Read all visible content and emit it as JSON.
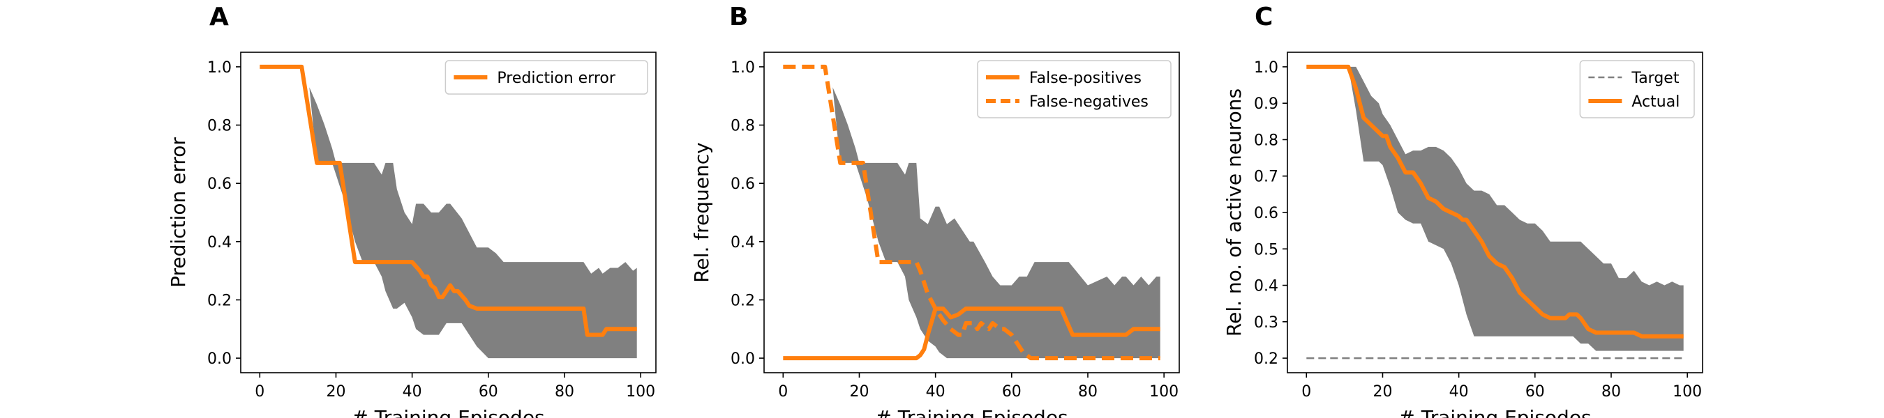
{
  "colors": {
    "orange": "#ff7f0e",
    "band": "#808080",
    "target": "#808080",
    "axis": "#000000"
  },
  "chart_data": [
    {
      "panel_label": "A",
      "type": "line",
      "xlabel": "# Training Episodes",
      "ylabel": "Prediction error",
      "xlim": [
        -5,
        104
      ],
      "ylim": [
        -0.05,
        1.05
      ],
      "xticks": [
        0,
        20,
        40,
        60,
        80,
        100
      ],
      "xtick_labels": [
        "0",
        "20",
        "40",
        "60",
        "80",
        "100"
      ],
      "yticks": [
        0.0,
        0.2,
        0.4,
        0.6,
        0.8,
        1.0
      ],
      "ytick_labels": [
        "0.0",
        "0.2",
        "0.4",
        "0.6",
        "0.8",
        "1.0"
      ],
      "legend_position": "top-right",
      "band": {
        "x": [
          0,
          11,
          13,
          15,
          17,
          19,
          20,
          22,
          25,
          27,
          30,
          32,
          33,
          35,
          36,
          38,
          40,
          41,
          43,
          45,
          47,
          49,
          50,
          53,
          55,
          57,
          60,
          62,
          64,
          66,
          70,
          75,
          80,
          85,
          87,
          89,
          90,
          92,
          94,
          96,
          98,
          99
        ],
        "upper": [
          1.0,
          1.0,
          0.93,
          0.87,
          0.8,
          0.72,
          0.67,
          0.67,
          0.67,
          0.67,
          0.67,
          0.63,
          0.67,
          0.67,
          0.58,
          0.5,
          0.46,
          0.53,
          0.53,
          0.5,
          0.5,
          0.53,
          0.53,
          0.48,
          0.43,
          0.38,
          0.38,
          0.36,
          0.33,
          0.33,
          0.33,
          0.33,
          0.33,
          0.33,
          0.29,
          0.31,
          0.29,
          0.31,
          0.31,
          0.33,
          0.3,
          0.31
        ],
        "lower": [
          1.0,
          1.0,
          0.93,
          0.67,
          0.67,
          0.67,
          0.63,
          0.55,
          0.4,
          0.33,
          0.33,
          0.28,
          0.23,
          0.17,
          0.17,
          0.19,
          0.14,
          0.1,
          0.08,
          0.08,
          0.08,
          0.12,
          0.12,
          0.12,
          0.08,
          0.04,
          0.0,
          0.0,
          0.0,
          0.0,
          0.0,
          0.0,
          0.0,
          0.0,
          0.0,
          0.0,
          0.0,
          0.0,
          0.0,
          0.0,
          0.0,
          0.0
        ]
      },
      "series": [
        {
          "name": "Prediction error",
          "style": "solid",
          "x": [
            0,
            11,
            15,
            20,
            21,
            25,
            30,
            35,
            40,
            42,
            43,
            44,
            45,
            46,
            47,
            48,
            50,
            51,
            52,
            54,
            55,
            57,
            60,
            65,
            70,
            80,
            85,
            86,
            90,
            91,
            95,
            99
          ],
          "y": [
            1.0,
            1.0,
            0.67,
            0.67,
            0.67,
            0.33,
            0.33,
            0.33,
            0.33,
            0.3,
            0.28,
            0.28,
            0.25,
            0.24,
            0.21,
            0.21,
            0.25,
            0.23,
            0.23,
            0.2,
            0.18,
            0.17,
            0.17,
            0.17,
            0.17,
            0.17,
            0.17,
            0.08,
            0.08,
            0.1,
            0.1,
            0.1
          ]
        }
      ]
    },
    {
      "panel_label": "B",
      "type": "line",
      "xlabel": "# Training Episodes",
      "ylabel": "Rel. frequency",
      "xlim": [
        -5,
        104
      ],
      "ylim": [
        -0.05,
        1.05
      ],
      "xticks": [
        0,
        20,
        40,
        60,
        80,
        100
      ],
      "xtick_labels": [
        "0",
        "20",
        "40",
        "60",
        "80",
        "100"
      ],
      "yticks": [
        0.0,
        0.2,
        0.4,
        0.6,
        0.8,
        1.0
      ],
      "ytick_labels": [
        "0.0",
        "0.2",
        "0.4",
        "0.6",
        "0.8",
        "1.0"
      ],
      "legend_position": "top-right",
      "band": {
        "x": [
          0,
          11,
          13,
          15,
          17,
          19,
          20,
          22,
          25,
          27,
          30,
          32,
          33,
          35,
          36,
          38,
          40,
          41,
          43,
          45,
          47,
          49,
          50,
          53,
          55,
          57,
          60,
          62,
          64,
          66,
          70,
          75,
          80,
          85,
          87,
          89,
          90,
          92,
          94,
          96,
          98,
          99
        ],
        "upper": [
          1.0,
          1.0,
          0.93,
          0.87,
          0.8,
          0.72,
          0.67,
          0.67,
          0.67,
          0.67,
          0.67,
          0.63,
          0.67,
          0.67,
          0.48,
          0.46,
          0.52,
          0.52,
          0.46,
          0.48,
          0.44,
          0.4,
          0.4,
          0.33,
          0.28,
          0.25,
          0.25,
          0.28,
          0.28,
          0.33,
          0.33,
          0.33,
          0.25,
          0.28,
          0.25,
          0.28,
          0.28,
          0.25,
          0.28,
          0.25,
          0.28,
          0.28
        ],
        "lower": [
          1.0,
          1.0,
          0.93,
          0.67,
          0.67,
          0.67,
          0.63,
          0.55,
          0.4,
          0.33,
          0.33,
          0.28,
          0.2,
          0.14,
          0.1,
          0.06,
          0.04,
          0.02,
          0.0,
          0.0,
          0.0,
          0.0,
          0.0,
          0.0,
          0.0,
          0.0,
          0.0,
          0.0,
          0.0,
          0.0,
          0.0,
          0.0,
          0.0,
          0.0,
          0.0,
          0.0,
          0.0,
          0.0,
          0.0,
          0.0,
          0.0,
          0.0
        ]
      },
      "series": [
        {
          "name": "False-positives",
          "style": "solid",
          "x": [
            0,
            35,
            36,
            37,
            38,
            40,
            42,
            44,
            46,
            48,
            50,
            55,
            60,
            65,
            70,
            73,
            76,
            80,
            85,
            90,
            92,
            95,
            99
          ],
          "y": [
            0.0,
            0.0,
            0.01,
            0.03,
            0.08,
            0.17,
            0.17,
            0.14,
            0.15,
            0.17,
            0.17,
            0.17,
            0.17,
            0.17,
            0.17,
            0.17,
            0.08,
            0.08,
            0.08,
            0.08,
            0.1,
            0.1,
            0.1
          ]
        },
        {
          "name": "False-negatives",
          "style": "dashed",
          "x": [
            0,
            11,
            15,
            20,
            21,
            25,
            30,
            35,
            36,
            38,
            40,
            42,
            44,
            46,
            47,
            48,
            50,
            51,
            52,
            54,
            55,
            57,
            58,
            60,
            63,
            65,
            70,
            80,
            90,
            99
          ],
          "y": [
            1.0,
            1.0,
            0.67,
            0.67,
            0.67,
            0.33,
            0.33,
            0.33,
            0.3,
            0.22,
            0.17,
            0.13,
            0.1,
            0.08,
            0.08,
            0.12,
            0.12,
            0.1,
            0.12,
            0.1,
            0.12,
            0.1,
            0.1,
            0.08,
            0.02,
            0.0,
            0.0,
            0.0,
            0.0,
            0.0
          ]
        }
      ]
    },
    {
      "panel_label": "C",
      "type": "line",
      "xlabel": "# Training Episodes",
      "ylabel": "Rel. no. of active neurons",
      "xlim": [
        -5,
        104
      ],
      "ylim": [
        0.16,
        1.04
      ],
      "xticks": [
        0,
        20,
        40,
        60,
        80,
        100
      ],
      "xtick_labels": [
        "0",
        "20",
        "40",
        "60",
        "80",
        "100"
      ],
      "yticks": [
        0.2,
        0.3,
        0.4,
        0.5,
        0.6,
        0.7,
        0.8,
        0.9,
        1.0
      ],
      "ytick_labels": [
        "0.2",
        "0.3",
        "0.4",
        "0.5",
        "0.6",
        "0.7",
        "0.8",
        "0.9",
        "1.0"
      ],
      "legend_position": "top-right",
      "band": {
        "x": [
          0,
          11,
          13,
          15,
          17,
          19,
          20,
          22,
          24,
          26,
          28,
          30,
          32,
          34,
          36,
          38,
          40,
          42,
          44,
          46,
          48,
          50,
          52,
          54,
          56,
          58,
          60,
          62,
          64,
          66,
          68,
          70,
          72,
          74,
          76,
          78,
          80,
          82,
          84,
          86,
          88,
          90,
          92,
          94,
          96,
          98,
          99
        ],
        "upper": [
          1.0,
          1.0,
          1.0,
          0.96,
          0.92,
          0.9,
          0.87,
          0.84,
          0.8,
          0.76,
          0.77,
          0.77,
          0.78,
          0.78,
          0.77,
          0.75,
          0.72,
          0.68,
          0.66,
          0.66,
          0.65,
          0.62,
          0.62,
          0.6,
          0.58,
          0.57,
          0.57,
          0.55,
          0.52,
          0.52,
          0.52,
          0.52,
          0.52,
          0.5,
          0.48,
          0.46,
          0.46,
          0.42,
          0.42,
          0.44,
          0.41,
          0.4,
          0.41,
          0.4,
          0.41,
          0.4,
          0.4
        ],
        "lower": [
          1.0,
          1.0,
          0.88,
          0.74,
          0.74,
          0.74,
          0.73,
          0.67,
          0.6,
          0.58,
          0.57,
          0.57,
          0.52,
          0.51,
          0.5,
          0.46,
          0.4,
          0.32,
          0.26,
          0.26,
          0.26,
          0.26,
          0.26,
          0.26,
          0.26,
          0.26,
          0.26,
          0.26,
          0.26,
          0.26,
          0.26,
          0.26,
          0.24,
          0.24,
          0.22,
          0.22,
          0.22,
          0.22,
          0.22,
          0.22,
          0.22,
          0.22,
          0.22,
          0.22,
          0.22,
          0.22,
          0.22
        ]
      },
      "series": [
        {
          "name": "Target",
          "style": "dashed-thin",
          "x": [
            0,
            99
          ],
          "y": [
            0.2,
            0.2
          ]
        },
        {
          "name": "Actual",
          "style": "solid",
          "x": [
            0,
            11,
            13,
            15,
            17,
            19,
            20,
            21,
            22,
            24,
            26,
            28,
            30,
            32,
            34,
            36,
            38,
            40,
            41,
            42,
            44,
            46,
            48,
            50,
            52,
            54,
            56,
            58,
            60,
            62,
            64,
            66,
            68,
            69,
            70,
            71,
            72,
            74,
            76,
            78,
            80,
            82,
            84,
            86,
            88,
            90,
            92,
            94,
            96,
            98,
            99
          ],
          "y": [
            1.0,
            1.0,
            0.94,
            0.86,
            0.84,
            0.82,
            0.81,
            0.81,
            0.78,
            0.75,
            0.71,
            0.71,
            0.68,
            0.64,
            0.63,
            0.61,
            0.6,
            0.59,
            0.58,
            0.58,
            0.55,
            0.52,
            0.48,
            0.46,
            0.45,
            0.42,
            0.38,
            0.36,
            0.34,
            0.32,
            0.31,
            0.31,
            0.31,
            0.32,
            0.32,
            0.32,
            0.31,
            0.28,
            0.27,
            0.27,
            0.27,
            0.27,
            0.27,
            0.27,
            0.26,
            0.26,
            0.26,
            0.26,
            0.26,
            0.26,
            0.26
          ]
        }
      ]
    }
  ]
}
